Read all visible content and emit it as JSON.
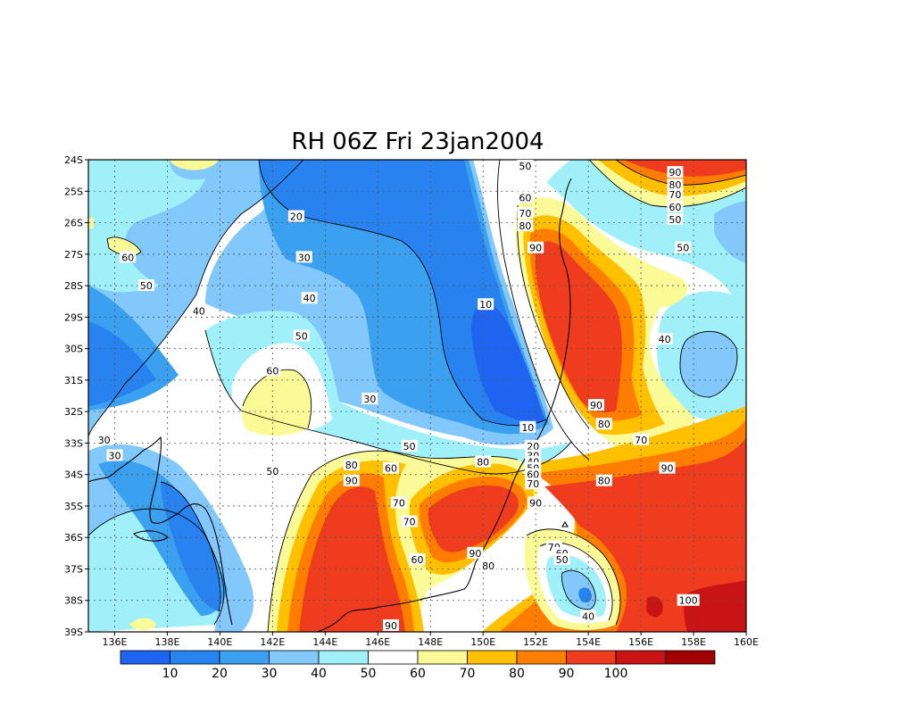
{
  "title": "RH 06Z Fri 23jan2004",
  "map": {
    "lat_labels": [
      "24S",
      "25S",
      "26S",
      "27S",
      "28S",
      "29S",
      "30S",
      "31S",
      "32S",
      "33S",
      "34S",
      "35S",
      "36S",
      "37S",
      "38S",
      "39S"
    ],
    "lon_labels": [
      "136E",
      "138E",
      "140E",
      "142E",
      "144E",
      "146E",
      "148E",
      "150E",
      "152E",
      "154E",
      "156E",
      "158E",
      "160E"
    ],
    "lat_range": [
      -39,
      -24
    ],
    "lon_range": [
      135,
      160
    ],
    "grid": true
  },
  "colorbar": {
    "levels": [
      10,
      20,
      30,
      40,
      50,
      60,
      70,
      80,
      90,
      100
    ],
    "colors": [
      "#1e64f0",
      "#2882f0",
      "#3ca0f0",
      "#82c8fa",
      "#a0f0fa",
      "#ffffff",
      "#fafa96",
      "#ffc000",
      "#ff7d00",
      "#f03c1e",
      "#c81414",
      "#a00000"
    ]
  },
  "contour_labels": [
    {
      "text": "50",
      "lon": 151.6,
      "lat": -24.2
    },
    {
      "text": "60",
      "lon": 151.6,
      "lat": -25.2
    },
    {
      "text": "70",
      "lon": 151.6,
      "lat": -25.7
    },
    {
      "text": "80",
      "lon": 151.6,
      "lat": -26.1
    },
    {
      "text": "90",
      "lon": 152.0,
      "lat": -26.8
    },
    {
      "text": "90",
      "lon": 157.3,
      "lat": -24.4
    },
    {
      "text": "80",
      "lon": 157.3,
      "lat": -24.8
    },
    {
      "text": "70",
      "lon": 157.3,
      "lat": -25.1
    },
    {
      "text": "60",
      "lon": 157.3,
      "lat": -25.5
    },
    {
      "text": "50",
      "lon": 157.3,
      "lat": -25.9
    },
    {
      "text": "50",
      "lon": 157.6,
      "lat": -26.8
    },
    {
      "text": "20",
      "lon": 142.9,
      "lat": -25.8
    },
    {
      "text": "30",
      "lon": 143.2,
      "lat": -27.1
    },
    {
      "text": "60",
      "lon": 136.5,
      "lat": -27.1
    },
    {
      "text": "50",
      "lon": 137.2,
      "lat": -28.0
    },
    {
      "text": "40",
      "lon": 139.2,
      "lat": -28.8
    },
    {
      "text": "40",
      "lon": 143.4,
      "lat": -28.4
    },
    {
      "text": "10",
      "lon": 150.1,
      "lat": -28.6
    },
    {
      "text": "50",
      "lon": 143.1,
      "lat": -29.6
    },
    {
      "text": "40",
      "lon": 156.9,
      "lat": -29.7
    },
    {
      "text": "60",
      "lon": 142.0,
      "lat": -30.7
    },
    {
      "text": "30",
      "lon": 145.7,
      "lat": -31.6
    },
    {
      "text": "90",
      "lon": 154.3,
      "lat": -31.8
    },
    {
      "text": "80",
      "lon": 154.6,
      "lat": -32.4
    },
    {
      "text": "10",
      "lon": 151.7,
      "lat": -32.5
    },
    {
      "text": "30",
      "lon": 135.6,
      "lat": -32.9
    },
    {
      "text": "70",
      "lon": 156.0,
      "lat": -32.9
    },
    {
      "text": "20",
      "lon": 151.9,
      "lat": -33.1
    },
    {
      "text": "50",
      "lon": 147.2,
      "lat": -33.1
    },
    {
      "text": "30",
      "lon": 136.0,
      "lat": -33.4
    },
    {
      "text": "30",
      "lon": 151.9,
      "lat": -33.4
    },
    {
      "text": "40",
      "lon": 151.9,
      "lat": -33.6
    },
    {
      "text": "80",
      "lon": 145.0,
      "lat": -33.7
    },
    {
      "text": "80",
      "lon": 150.0,
      "lat": -33.6
    },
    {
      "text": "50",
      "lon": 151.9,
      "lat": -33.8
    },
    {
      "text": "60",
      "lon": 146.5,
      "lat": -33.8
    },
    {
      "text": "90",
      "lon": 157.0,
      "lat": -33.8
    },
    {
      "text": "50",
      "lon": 142.0,
      "lat": -33.9
    },
    {
      "text": "60",
      "lon": 151.9,
      "lat": -34.0
    },
    {
      "text": "90",
      "lon": 145.0,
      "lat": -34.2
    },
    {
      "text": "80",
      "lon": 154.6,
      "lat": -34.2
    },
    {
      "text": "70",
      "lon": 151.9,
      "lat": -34.3
    },
    {
      "text": "90",
      "lon": 152.0,
      "lat": -34.9
    },
    {
      "text": "70",
      "lon": 146.8,
      "lat": -34.9
    },
    {
      "text": "70",
      "lon": 147.2,
      "lat": -35.5
    },
    {
      "text": "70",
      "lon": 152.7,
      "lat": -36.3
    },
    {
      "text": "60",
      "lon": 153.0,
      "lat": -36.5
    },
    {
      "text": "90",
      "lon": 149.7,
      "lat": -36.5
    },
    {
      "text": "50",
      "lon": 153.0,
      "lat": -36.7
    },
    {
      "text": "60",
      "lon": 147.5,
      "lat": -36.7
    },
    {
      "text": "80",
      "lon": 150.2,
      "lat": -36.9
    },
    {
      "text": "100",
      "lon": 157.8,
      "lat": -38.0
    },
    {
      "text": "40",
      "lon": 154.0,
      "lat": -38.5
    },
    {
      "text": "90",
      "lon": 146.5,
      "lat": -38.8
    }
  ]
}
